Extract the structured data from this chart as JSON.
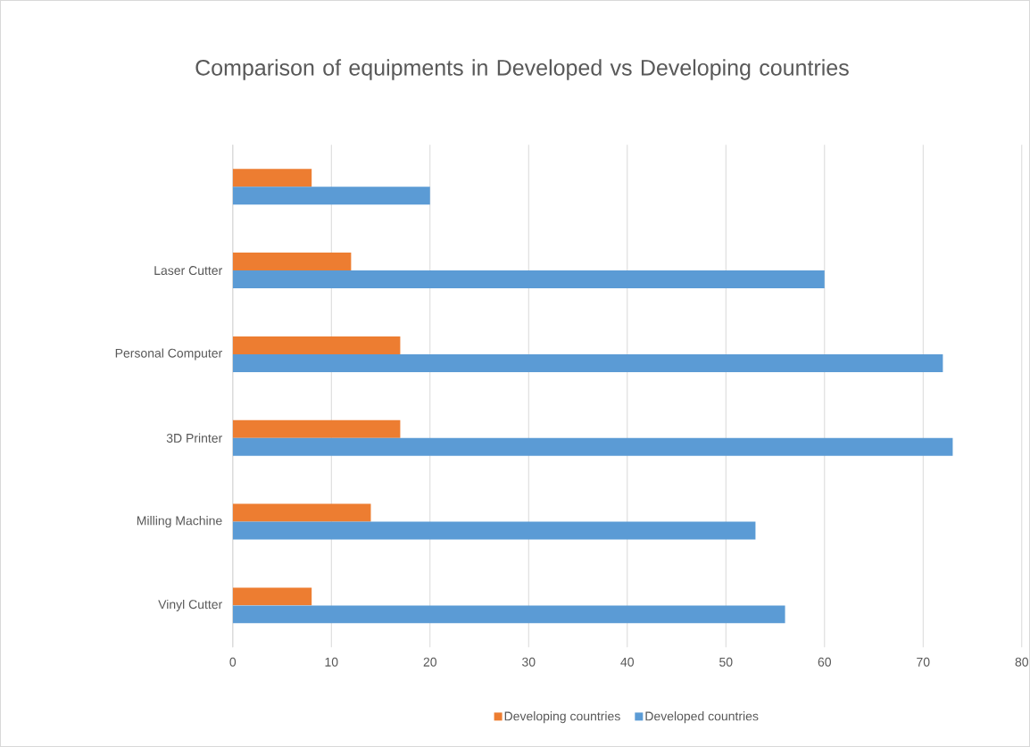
{
  "chart_data": {
    "type": "bar",
    "orientation": "horizontal",
    "title": "Comparison of equipments in Developed vs Developing countries",
    "categories": [
      null,
      "Laser Cutter",
      "Personal Computer",
      "3D Printer",
      "Milling Machine",
      "Vinyl Cutter"
    ],
    "series": [
      {
        "name": "Developing countries",
        "color": "#ed7d31",
        "values": [
          8,
          12,
          17,
          17,
          14,
          8
        ]
      },
      {
        "name": "Developed countries",
        "color": "#5b9bd5",
        "values": [
          20,
          60,
          72,
          73,
          53,
          56
        ]
      }
    ],
    "xlim": [
      0,
      80
    ],
    "xticks": [
      0,
      10,
      20,
      30,
      40,
      50,
      60,
      70,
      80
    ],
    "grid": "x",
    "legend": "bottom"
  }
}
